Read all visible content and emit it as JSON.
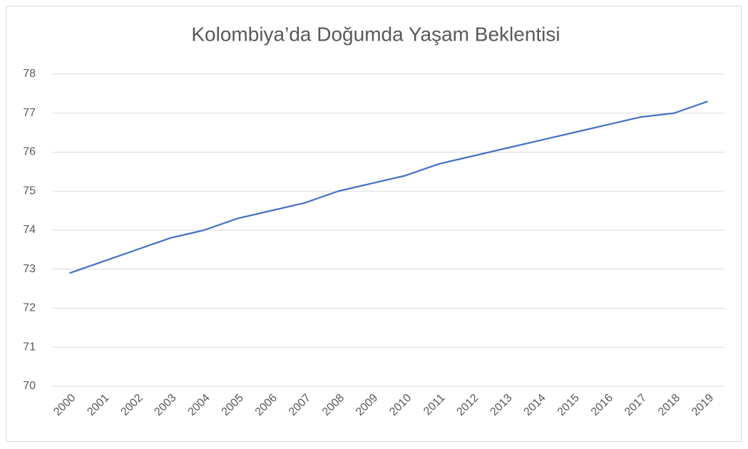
{
  "chart_data": {
    "type": "line",
    "title": "Kolombiya’da Doğumda Yaşam Beklentisi",
    "categories": [
      "2000",
      "2001",
      "2002",
      "2003",
      "2004",
      "2005",
      "2006",
      "2007",
      "2008",
      "2009",
      "2010",
      "2011",
      "2012",
      "2013",
      "2014",
      "2015",
      "2016",
      "2017",
      "2018",
      "2019"
    ],
    "series": [
      {
        "name": "Yaşam Beklentisi",
        "color": "#4472c4",
        "values": [
          72.9,
          73.2,
          73.5,
          73.8,
          74.0,
          74.3,
          74.5,
          74.7,
          75.0,
          75.2,
          75.4,
          75.7,
          75.9,
          76.1,
          76.3,
          76.5,
          76.7,
          76.9,
          77.0,
          77.3
        ]
      }
    ],
    "ylim": [
      70,
      78
    ],
    "yticks": [
      70,
      71,
      72,
      73,
      74,
      75,
      76,
      77,
      78
    ],
    "grid": true
  }
}
